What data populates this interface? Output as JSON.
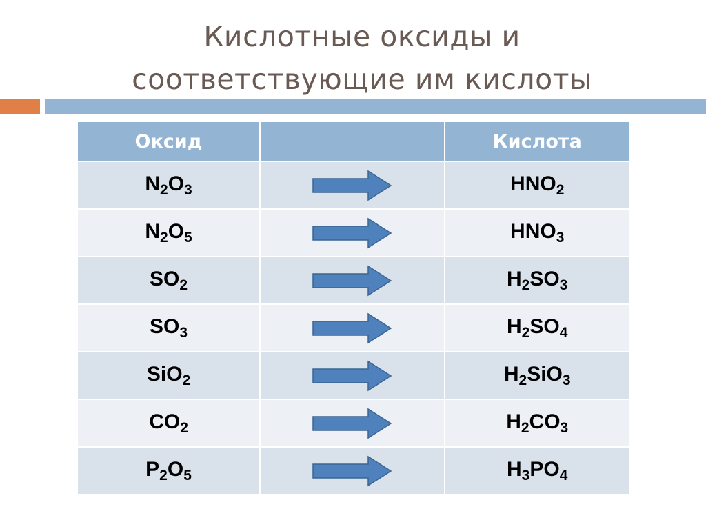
{
  "title": {
    "line1": "Кислотные оксиды и",
    "line2": "соответствующие им кислоты"
  },
  "colors": {
    "accent_orange": "#e07f46",
    "accent_blue": "#93b4d2",
    "arrow": "#4f81bd"
  },
  "table": {
    "headers": [
      "Оксид",
      "",
      "Кислота"
    ],
    "arrow_icon": "right-arrow",
    "rows": [
      {
        "oxide": "N2O3",
        "acid": "HNO2"
      },
      {
        "oxide": "N2O5",
        "acid": "HNO3"
      },
      {
        "oxide": "SO2",
        "acid": "H2SO3"
      },
      {
        "oxide": "SO3",
        "acid": "H2SO4"
      },
      {
        "oxide": "SiO2",
        "acid": "H2SiO3"
      },
      {
        "oxide": "CO2",
        "acid": "H2CO3"
      },
      {
        "oxide": "P2O5",
        "acid": "H3PO4"
      }
    ]
  }
}
